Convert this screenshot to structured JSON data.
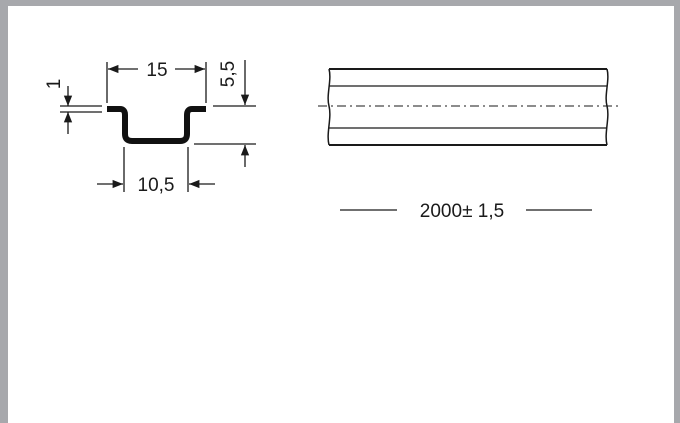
{
  "drawing": {
    "profile": {
      "width_top": "15",
      "height": "5,5",
      "thickness": "1",
      "width_bottom": "10,5"
    },
    "rail": {
      "length": "2000± 1,5"
    }
  }
}
